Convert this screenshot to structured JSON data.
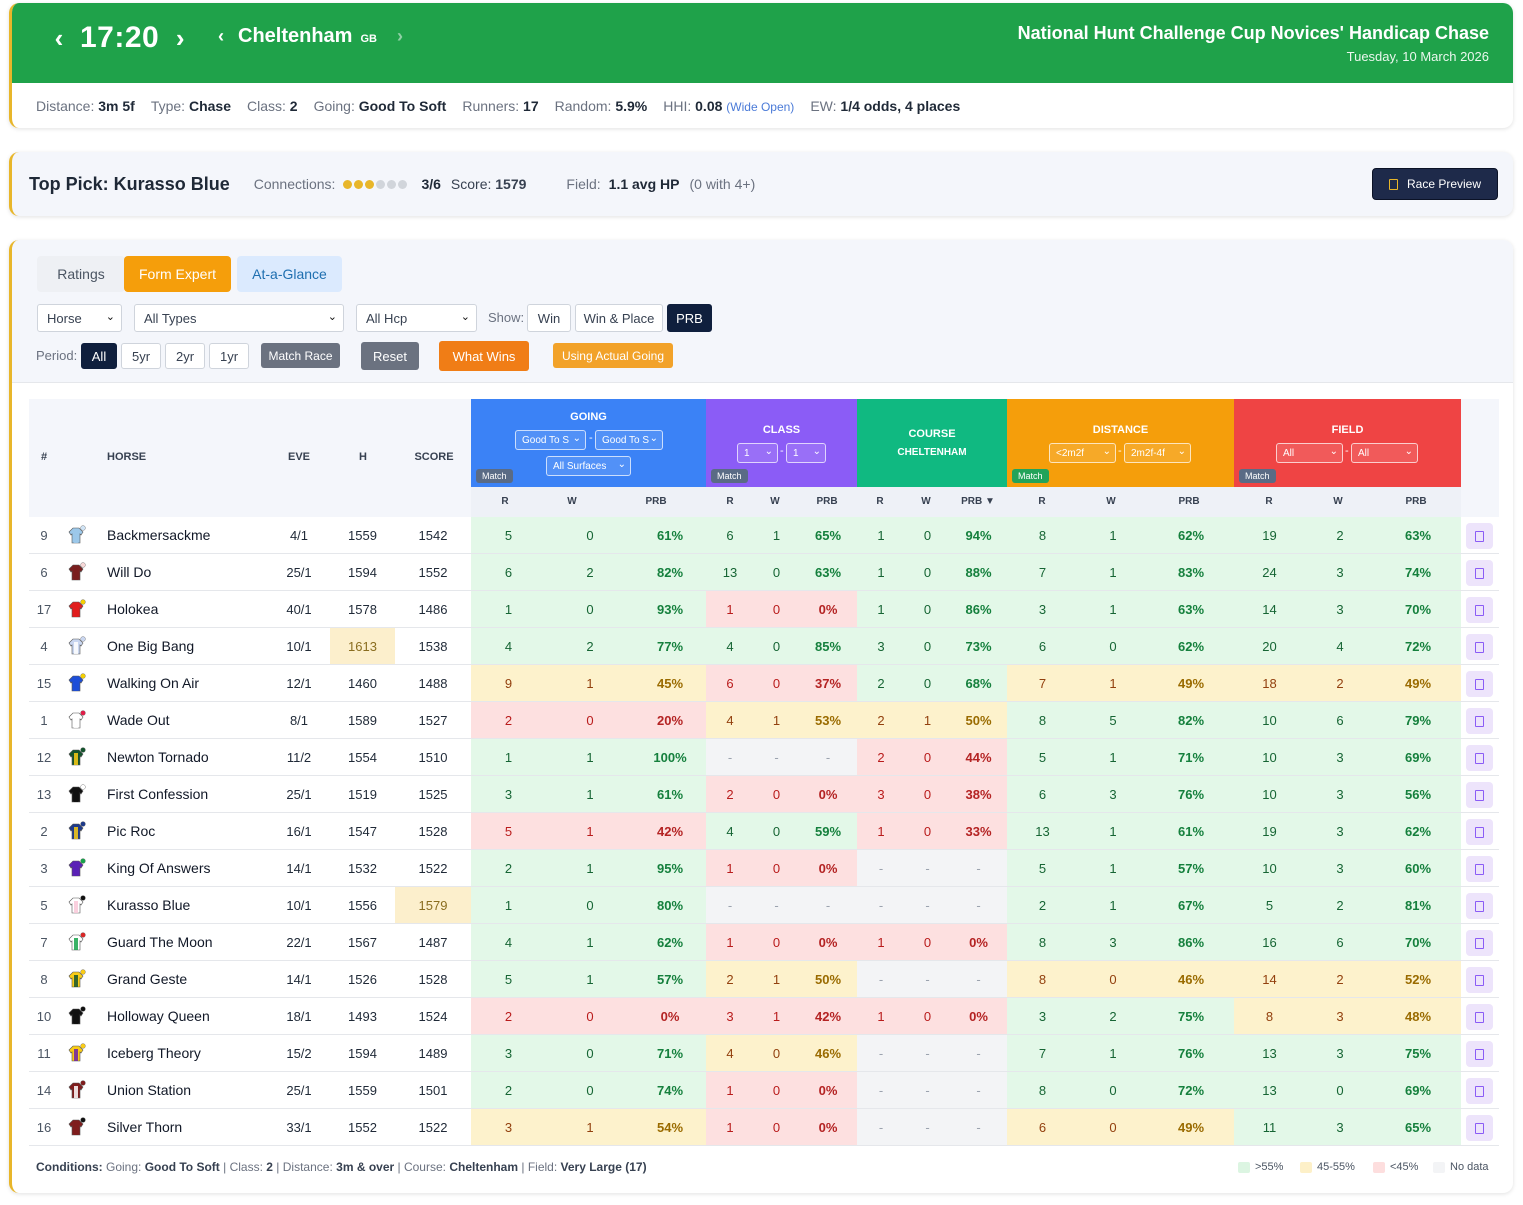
{
  "header": {
    "time": "17:20",
    "course": "Cheltenham",
    "country": "GB",
    "race_title": "National Hunt Challenge Cup Novices' Handicap Chase",
    "date": "Tuesday, 10 March 2026",
    "accent_color": "#1fa24a"
  },
  "meta": {
    "distance_label": "Distance:",
    "distance": "3m 5f",
    "type_label": "Type:",
    "type": "Chase",
    "class_label": "Class:",
    "class": "2",
    "going_label": "Going:",
    "going": "Good To Soft",
    "runners_label": "Runners:",
    "runners": "17",
    "random_label": "Random:",
    "random": "5.9%",
    "hhi_label": "HHI:",
    "hhi": "0.08",
    "hhi_note": "(Wide Open)",
    "ew_label": "EW:",
    "ew": "1/4 odds, 4 places"
  },
  "top_pick": {
    "title": "Top Pick: Kurasso Blue",
    "connections_label": "Connections:",
    "connections_rating": 3,
    "connections_max": 6,
    "connections": "3/6",
    "score_label": "Score:",
    "score": "1579",
    "field_label": "Field:",
    "field": "1.1 avg HP",
    "field_note": "(0 with 4+)",
    "preview_button": "Race Preview"
  },
  "tabs": [
    "Ratings",
    "Form Expert",
    "At-a-Glance"
  ],
  "filters": {
    "horse_select": "Horse",
    "types_select": "All Types",
    "hcp_select": "All Hcp",
    "show_label": "Show:",
    "show_options": [
      "Win",
      "Win & Place",
      "PRB"
    ],
    "show_selected": "PRB",
    "period_label": "Period:",
    "period_options": [
      "All",
      "5yr",
      "2yr",
      "1yr"
    ],
    "period_selected": "All",
    "match_race": "Match Race",
    "reset": "Reset",
    "what_wins": "What Wins",
    "using_going": "Using Actual Going"
  },
  "table": {
    "columns": {
      "num": "#",
      "horse": "HORSE",
      "eve": "EVE",
      "h": "H",
      "score": "SCORE"
    },
    "sub": {
      "r": "R",
      "w": "W",
      "prb": "PRB",
      "prb_sorted": "PRB ▼"
    },
    "match_label": "Match",
    "groups": {
      "going": {
        "title": "GOING",
        "sel1": "Good To S",
        "sel2": "Good To S",
        "sel3": "All Surfaces",
        "color": "#3b82f6"
      },
      "class": {
        "title": "CLASS",
        "sel1": "1",
        "sel2": "1",
        "color": "#8b5cf6"
      },
      "course": {
        "title": "COURSE",
        "sub": "CHELTENHAM",
        "color": "#10b981"
      },
      "distance": {
        "title": "DISTANCE",
        "sel1": "<2m2f",
        "sel2": "2m2f-4f",
        "color": "#f59e0b"
      },
      "field": {
        "title": "FIELD",
        "sel1": "All",
        "sel2": "All",
        "color": "#ef4444"
      }
    },
    "rows": [
      {
        "num": "9",
        "horse": "Backmersackme",
        "eve": "4/1",
        "h": "1559",
        "score": "1542",
        "going": [
          "5",
          "0",
          "61%",
          "g"
        ],
        "class": [
          "6",
          "1",
          "65%",
          "g"
        ],
        "course": [
          "1",
          "0",
          "94%",
          "g"
        ],
        "distance": [
          "8",
          "1",
          "62%",
          "g"
        ],
        "field": [
          "19",
          "2",
          "63%",
          "g"
        ],
        "silk": [
          "#9cc8ea",
          "#9cc8ea",
          "#cfe3f5"
        ]
      },
      {
        "num": "6",
        "horse": "Will Do",
        "eve": "25/1",
        "h": "1594",
        "score": "1552",
        "going": [
          "6",
          "2",
          "82%",
          "g"
        ],
        "class": [
          "13",
          "0",
          "63%",
          "g"
        ],
        "course": [
          "1",
          "0",
          "88%",
          "g"
        ],
        "distance": [
          "7",
          "1",
          "83%",
          "g"
        ],
        "field": [
          "24",
          "3",
          "74%",
          "g"
        ],
        "silk": [
          "#7a1f1f",
          "#7a1f1f",
          "#f7d7d7"
        ]
      },
      {
        "num": "17",
        "horse": "Holokea",
        "eve": "40/1",
        "h": "1578",
        "score": "1486",
        "going": [
          "1",
          "0",
          "93%",
          "g"
        ],
        "class": [
          "1",
          "0",
          "0%",
          "r"
        ],
        "course": [
          "1",
          "0",
          "86%",
          "g"
        ],
        "distance": [
          "3",
          "1",
          "63%",
          "g"
        ],
        "field": [
          "14",
          "3",
          "70%",
          "g"
        ],
        "silk": [
          "#e11d1d",
          "#e11d1d",
          "#f5d000"
        ]
      },
      {
        "num": "4",
        "horse": "One Big Bang",
        "eve": "10/1",
        "h": "1613",
        "score": "1538",
        "going": [
          "4",
          "2",
          "77%",
          "g"
        ],
        "class": [
          "4",
          "0",
          "85%",
          "g"
        ],
        "course": [
          "3",
          "0",
          "73%",
          "g"
        ],
        "distance": [
          "6",
          "0",
          "62%",
          "g"
        ],
        "field": [
          "20",
          "4",
          "72%",
          "g"
        ],
        "silk": [
          "#c9d6f0",
          "#ffffff",
          "#c9d6f0"
        ],
        "h_hl": true
      },
      {
        "num": "15",
        "horse": "Walking On Air",
        "eve": "12/1",
        "h": "1460",
        "score": "1488",
        "going": [
          "9",
          "1",
          "45%",
          "y"
        ],
        "class": [
          "6",
          "0",
          "37%",
          "r"
        ],
        "course": [
          "2",
          "0",
          "68%",
          "g"
        ],
        "distance": [
          "7",
          "1",
          "49%",
          "y"
        ],
        "field": [
          "18",
          "2",
          "49%",
          "y"
        ],
        "silk": [
          "#1d4ed8",
          "#1d4ed8",
          "#f5d000"
        ]
      },
      {
        "num": "1",
        "horse": "Wade Out",
        "eve": "8/1",
        "h": "1589",
        "score": "1527",
        "going": [
          "2",
          "0",
          "20%",
          "r"
        ],
        "class": [
          "4",
          "1",
          "53%",
          "y"
        ],
        "course": [
          "2",
          "1",
          "50%",
          "y"
        ],
        "distance": [
          "8",
          "5",
          "82%",
          "g"
        ],
        "field": [
          "10",
          "6",
          "79%",
          "g"
        ],
        "silk": [
          "#ffffff",
          "#ffffff",
          "#e11d48"
        ]
      },
      {
        "num": "12",
        "horse": "Newton Tornado",
        "eve": "11/2",
        "h": "1554",
        "score": "1510",
        "going": [
          "1",
          "1",
          "100%",
          "g"
        ],
        "class": [
          "-",
          "-",
          "-",
          "n"
        ],
        "course": [
          "2",
          "0",
          "44%",
          "r"
        ],
        "distance": [
          "5",
          "1",
          "71%",
          "g"
        ],
        "field": [
          "10",
          "3",
          "69%",
          "g"
        ],
        "silk": [
          "#14532d",
          "#facc15",
          "#14532d"
        ]
      },
      {
        "num": "13",
        "horse": "First Confession",
        "eve": "25/1",
        "h": "1519",
        "score": "1525",
        "going": [
          "3",
          "1",
          "61%",
          "g"
        ],
        "class": [
          "2",
          "0",
          "0%",
          "r"
        ],
        "course": [
          "3",
          "0",
          "38%",
          "r"
        ],
        "distance": [
          "6",
          "3",
          "76%",
          "g"
        ],
        "field": [
          "10",
          "3",
          "56%",
          "g"
        ],
        "silk": [
          "#111111",
          "#111111",
          "#ffffff"
        ]
      },
      {
        "num": "2",
        "horse": "Pic Roc",
        "eve": "16/1",
        "h": "1547",
        "score": "1528",
        "going": [
          "5",
          "1",
          "42%",
          "r"
        ],
        "class": [
          "4",
          "0",
          "59%",
          "g"
        ],
        "course": [
          "1",
          "0",
          "33%",
          "r"
        ],
        "distance": [
          "13",
          "1",
          "61%",
          "g"
        ],
        "field": [
          "19",
          "3",
          "62%",
          "g"
        ],
        "silk": [
          "#1e3a8a",
          "#facc15",
          "#1e3a8a"
        ]
      },
      {
        "num": "3",
        "horse": "King Of Answers",
        "eve": "14/1",
        "h": "1532",
        "score": "1522",
        "going": [
          "2",
          "1",
          "95%",
          "g"
        ],
        "class": [
          "1",
          "0",
          "0%",
          "r"
        ],
        "course": [
          "-",
          "-",
          "-",
          "n"
        ],
        "distance": [
          "5",
          "1",
          "57%",
          "g"
        ],
        "field": [
          "10",
          "3",
          "60%",
          "g"
        ],
        "silk": [
          "#5b21b6",
          "#5b21b6",
          "#16a34a"
        ]
      },
      {
        "num": "5",
        "horse": "Kurasso Blue",
        "eve": "10/1",
        "h": "1556",
        "score": "1579",
        "going": [
          "1",
          "0",
          "80%",
          "g"
        ],
        "class": [
          "-",
          "-",
          "-",
          "n"
        ],
        "course": [
          "-",
          "-",
          "-",
          "n"
        ],
        "distance": [
          "2",
          "1",
          "67%",
          "g"
        ],
        "field": [
          "5",
          "2",
          "81%",
          "g"
        ],
        "silk": [
          "#ffffff",
          "#f9c8d8",
          "#111111"
        ],
        "score_hl": true
      },
      {
        "num": "7",
        "horse": "Guard The Moon",
        "eve": "22/1",
        "h": "1567",
        "score": "1487",
        "going": [
          "4",
          "1",
          "62%",
          "g"
        ],
        "class": [
          "1",
          "0",
          "0%",
          "r"
        ],
        "course": [
          "1",
          "0",
          "0%",
          "r"
        ],
        "distance": [
          "8",
          "3",
          "86%",
          "g"
        ],
        "field": [
          "16",
          "6",
          "70%",
          "g"
        ],
        "silk": [
          "#ffffff",
          "#16a34a",
          "#dc2626"
        ]
      },
      {
        "num": "8",
        "horse": "Grand Geste",
        "eve": "14/1",
        "h": "1526",
        "score": "1528",
        "going": [
          "5",
          "1",
          "57%",
          "g"
        ],
        "class": [
          "2",
          "1",
          "50%",
          "y"
        ],
        "course": [
          "-",
          "-",
          "-",
          "n"
        ],
        "distance": [
          "8",
          "0",
          "46%",
          "y"
        ],
        "field": [
          "14",
          "2",
          "52%",
          "y"
        ],
        "silk": [
          "#facc15",
          "#14532d",
          "#facc15"
        ]
      },
      {
        "num": "10",
        "horse": "Holloway Queen",
        "eve": "18/1",
        "h": "1493",
        "score": "1524",
        "going": [
          "2",
          "0",
          "0%",
          "r"
        ],
        "class": [
          "3",
          "1",
          "42%",
          "r"
        ],
        "course": [
          "1",
          "0",
          "0%",
          "r"
        ],
        "distance": [
          "3",
          "2",
          "75%",
          "g"
        ],
        "field": [
          "8",
          "3",
          "48%",
          "y"
        ],
        "silk": [
          "#111111",
          "#111111",
          "#111111"
        ]
      },
      {
        "num": "11",
        "horse": "Iceberg Theory",
        "eve": "15/2",
        "h": "1594",
        "score": "1489",
        "going": [
          "3",
          "0",
          "71%",
          "g"
        ],
        "class": [
          "4",
          "0",
          "46%",
          "y"
        ],
        "course": [
          "-",
          "-",
          "-",
          "n"
        ],
        "distance": [
          "7",
          "1",
          "76%",
          "g"
        ],
        "field": [
          "13",
          "3",
          "75%",
          "g"
        ],
        "silk": [
          "#facc15",
          "#6b21a8",
          "#facc15"
        ]
      },
      {
        "num": "14",
        "horse": "Union Station",
        "eve": "25/1",
        "h": "1559",
        "score": "1501",
        "going": [
          "2",
          "0",
          "74%",
          "g"
        ],
        "class": [
          "1",
          "0",
          "0%",
          "r"
        ],
        "course": [
          "-",
          "-",
          "-",
          "n"
        ],
        "distance": [
          "8",
          "0",
          "72%",
          "g"
        ],
        "field": [
          "13",
          "0",
          "69%",
          "g"
        ],
        "silk": [
          "#7f1d1d",
          "#ffffff",
          "#7f1d1d"
        ]
      },
      {
        "num": "16",
        "horse": "Silver Thorn",
        "eve": "33/1",
        "h": "1552",
        "score": "1522",
        "going": [
          "3",
          "1",
          "54%",
          "y"
        ],
        "class": [
          "1",
          "0",
          "0%",
          "r"
        ],
        "course": [
          "-",
          "-",
          "-",
          "n"
        ],
        "distance": [
          "6",
          "0",
          "49%",
          "y"
        ],
        "field": [
          "11",
          "3",
          "65%",
          "g"
        ],
        "silk": [
          "#7f1d1d",
          "#7f1d1d",
          "#111111"
        ]
      }
    ]
  },
  "footer": {
    "label": "Conditions:",
    "going_label": "Going:",
    "going": "Good To Soft",
    "class_label": "Class:",
    "class": "2",
    "distance_label": "Distance:",
    "distance": "3m & over",
    "course_label": "Course:",
    "course": "Cheltenham",
    "field_label": "Field:",
    "field": "Very Large (17)",
    "legend": [
      {
        "label": ">55%",
        "color": "#dcf5e2"
      },
      {
        "label": "45-55%",
        "color": "#fdf0c8"
      },
      {
        "label": "<45%",
        "color": "#fddede"
      },
      {
        "label": "No data",
        "color": "#f3f4f6"
      }
    ]
  }
}
